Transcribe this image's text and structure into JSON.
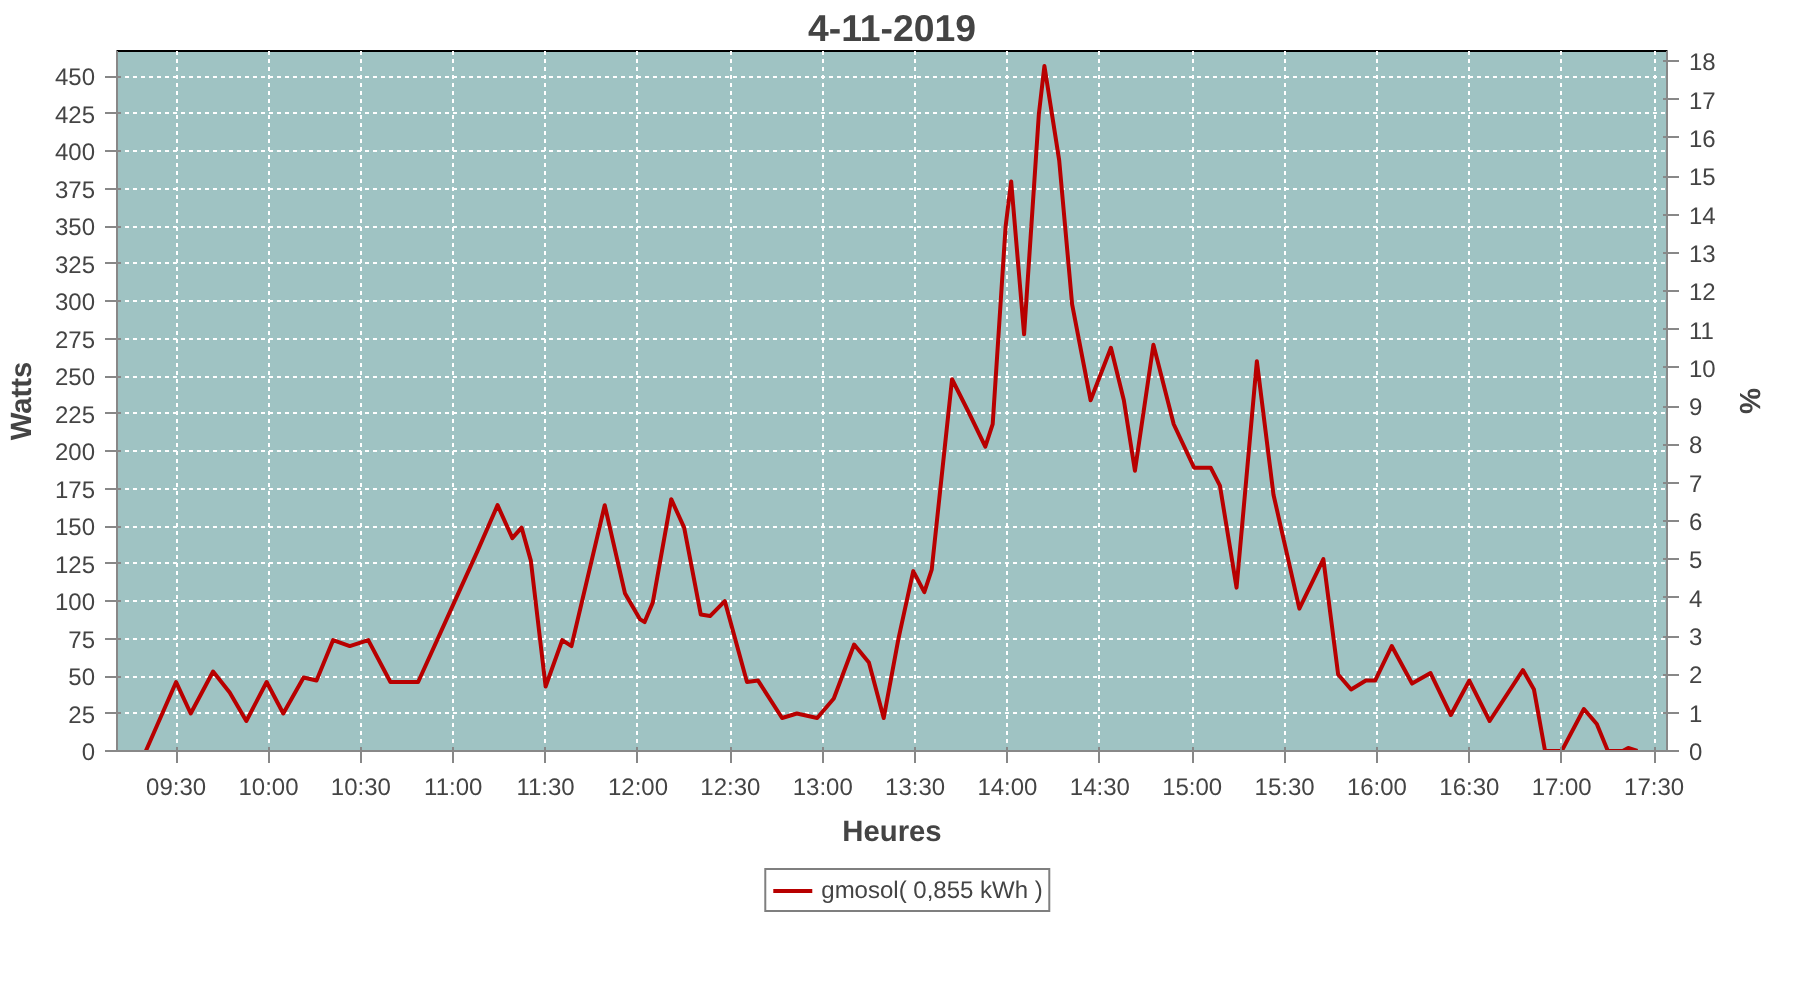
{
  "chart_data": {
    "type": "line",
    "title": "4-11-2019",
    "xlabel": "Heures",
    "ylabel": "Watts",
    "y2label": "%",
    "xlim": [
      9.18,
      17.57
    ],
    "xticks": [
      {
        "value": 9.5,
        "label": "09:30"
      },
      {
        "value": 10,
        "label": "10:00"
      },
      {
        "value": 10.5,
        "label": "10:30"
      },
      {
        "value": 11,
        "label": "11:00"
      },
      {
        "value": 11.5,
        "label": "11:30"
      },
      {
        "value": 12,
        "label": "12:00"
      },
      {
        "value": 12.5,
        "label": "12:30"
      },
      {
        "value": 13,
        "label": "13:00"
      },
      {
        "value": 13.5,
        "label": "13:30"
      },
      {
        "value": 14,
        "label": "14:00"
      },
      {
        "value": 14.5,
        "label": "14:30"
      },
      {
        "value": 15,
        "label": "15:00"
      },
      {
        "value": 15.5,
        "label": "15:30"
      },
      {
        "value": 16,
        "label": "16:00"
      },
      {
        "value": 16.5,
        "label": "16:30"
      },
      {
        "value": 17,
        "label": "17:00"
      },
      {
        "value": 17.5,
        "label": "17:30"
      }
    ],
    "ylim": [
      0,
      467
    ],
    "yticks": [
      0,
      25,
      50,
      75,
      100,
      125,
      150,
      175,
      200,
      225,
      250,
      275,
      300,
      325,
      350,
      375,
      400,
      425,
      450
    ],
    "y2lim": [
      0,
      18.27
    ],
    "y2ticks": [
      0,
      1,
      2,
      3,
      4,
      5,
      6,
      7,
      8,
      9,
      10,
      11,
      12,
      13,
      14,
      15,
      16,
      17,
      18
    ],
    "grid": true,
    "legend": "bottom",
    "marker": "none",
    "line_style": "solid",
    "series": [
      {
        "name": "gmosol( 0,855 kWh )",
        "color": "#b80000",
        "x": [
          9.336,
          9.5,
          9.579,
          9.7,
          9.79,
          9.88,
          9.99,
          10.08,
          10.19,
          10.26,
          10.35,
          10.44,
          10.54,
          10.66,
          10.81,
          10.99,
          11.13,
          11.24,
          11.32,
          11.37,
          11.42,
          11.5,
          11.59,
          11.64,
          11.82,
          11.93,
          12.01,
          12.036,
          12.08,
          12.18,
          12.25,
          12.34,
          12.39,
          12.47,
          12.59,
          12.65,
          12.78,
          12.86,
          12.97,
          13.06,
          13.17,
          13.25,
          13.33,
          13.41,
          13.49,
          13.55,
          13.59,
          13.7,
          13.79,
          13.88,
          13.92,
          13.99,
          14.02,
          14.09,
          14.17,
          14.2,
          14.28,
          14.35,
          14.45,
          14.56,
          14.63,
          14.69,
          14.79,
          14.9,
          15.01,
          15.1,
          15.15,
          15.24,
          15.35,
          15.44,
          15.58,
          15.71,
          15.79,
          15.86,
          15.94,
          15.99,
          16.08,
          16.19,
          16.29,
          16.4,
          16.5,
          16.61,
          16.79,
          16.85,
          16.91,
          17.0,
          17.12,
          17.19,
          17.25,
          17.33,
          17.36,
          17.41
        ],
        "values": [
          0,
          46,
          25,
          53,
          39,
          20,
          46,
          25,
          49,
          47,
          74,
          70,
          74,
          46,
          46,
          95,
          133,
          164,
          142,
          149,
          127,
          43,
          74,
          70,
          164,
          105,
          88,
          86,
          99,
          168,
          149,
          91,
          90,
          100,
          46,
          47,
          22,
          25,
          22,
          35,
          71,
          59,
          22,
          75,
          120,
          106,
          121,
          248,
          226,
          203,
          218,
          350,
          380,
          278,
          425,
          457,
          394,
          298,
          234,
          269,
          234,
          187,
          271,
          218,
          189,
          189,
          177,
          109,
          260,
          171,
          95,
          128,
          51,
          41,
          47,
          47,
          70,
          45,
          52,
          24,
          47,
          20,
          54,
          41,
          0,
          0,
          28,
          18,
          0,
          0,
          2,
          0
        ]
      }
    ]
  }
}
